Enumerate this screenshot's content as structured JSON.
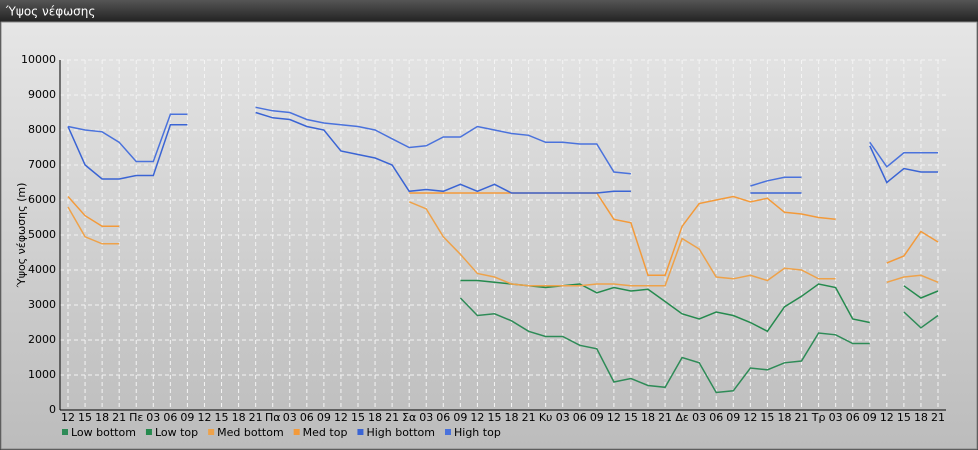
{
  "window_title": "Ύψος νέφωσης",
  "chart_data": {
    "type": "line",
    "y_label": "Ύψος νέφωσης (m)",
    "categories": [
      "12",
      "15",
      "18",
      "21",
      "Πε",
      "03",
      "06",
      "09",
      "12",
      "15",
      "18",
      "21",
      "Πα",
      "03",
      "06",
      "09",
      "12",
      "15",
      "18",
      "21",
      "Σα",
      "03",
      "06",
      "09",
      "12",
      "15",
      "18",
      "21",
      "Κυ",
      "03",
      "06",
      "09",
      "12",
      "15",
      "18",
      "21",
      "Δε",
      "03",
      "06",
      "09",
      "12",
      "15",
      "18",
      "21",
      "Τρ",
      "03",
      "06",
      "09",
      "12",
      "15",
      "18",
      "21"
    ],
    "ylim": [
      0,
      10000
    ],
    "yticks": [
      0,
      1000,
      2000,
      3000,
      4000,
      5000,
      6000,
      7000,
      8000,
      9000,
      10000
    ],
    "grid": true,
    "legend": "bottom",
    "series": [
      {
        "name": "Low bottom",
        "color": "#2e8b57",
        "values": [
          null,
          null,
          null,
          null,
          null,
          null,
          null,
          null,
          null,
          null,
          null,
          null,
          null,
          null,
          null,
          null,
          null,
          null,
          null,
          null,
          null,
          null,
          null,
          3200,
          2700,
          2750,
          2550,
          2250,
          2100,
          2100,
          1850,
          1750,
          800,
          900,
          700,
          650,
          1500,
          1350,
          500,
          550,
          1200,
          1150,
          1350,
          1400,
          2200,
          2150,
          1900,
          1900,
          null,
          2800,
          2350,
          2700
        ]
      },
      {
        "name": "Low top",
        "color": "#258a4e",
        "values": [
          null,
          null,
          null,
          null,
          null,
          null,
          null,
          null,
          null,
          null,
          null,
          null,
          null,
          null,
          null,
          null,
          null,
          null,
          null,
          null,
          null,
          null,
          null,
          3700,
          3700,
          3650,
          3600,
          3550,
          3500,
          3550,
          3600,
          3350,
          3500,
          3400,
          3450,
          3100,
          2750,
          2600,
          2800,
          2700,
          2500,
          2250,
          2950,
          3250,
          3600,
          3500,
          2600,
          2500,
          null,
          3550,
          3200,
          3400
        ]
      },
      {
        "name": "Med bottom",
        "color": "#eea24a",
        "values": [
          5800,
          4950,
          4750,
          4750,
          null,
          null,
          null,
          null,
          null,
          null,
          null,
          null,
          null,
          null,
          null,
          null,
          null,
          null,
          null,
          null,
          5950,
          5750,
          4950,
          4450,
          3900,
          3800,
          3600,
          3550,
          3550,
          3550,
          3550,
          3600,
          3600,
          3550,
          3550,
          3550,
          4900,
          4600,
          3800,
          3750,
          3850,
          3700,
          4050,
          4000,
          3750,
          3750,
          null,
          null,
          3650,
          3800,
          3850,
          3650
        ]
      },
      {
        "name": "Med top",
        "color": "#f39a3a",
        "values": [
          6100,
          5550,
          5250,
          5250,
          null,
          null,
          null,
          null,
          null,
          null,
          null,
          null,
          null,
          null,
          null,
          null,
          null,
          null,
          null,
          null,
          6200,
          6200,
          6200,
          6200,
          6200,
          6200,
          6200,
          6200,
          6200,
          6200,
          6200,
          6200,
          5450,
          5350,
          3850,
          3850,
          5250,
          5900,
          6000,
          6100,
          5950,
          6050,
          5650,
          5600,
          5500,
          5450,
          null,
          null,
          4200,
          4400,
          5100,
          4800
        ]
      },
      {
        "name": "High bottom",
        "color": "#3a64d4",
        "values": [
          8100,
          7000,
          6600,
          6600,
          6700,
          6700,
          8150,
          8150,
          null,
          null,
          null,
          8500,
          8350,
          8300,
          8100,
          8000,
          7400,
          7300,
          7200,
          7000,
          6250,
          6300,
          6250,
          6450,
          6250,
          6450,
          6200,
          6200,
          6200,
          6200,
          6200,
          6200,
          6250,
          6250,
          null,
          null,
          null,
          null,
          null,
          null,
          6200,
          6200,
          6200,
          6200,
          null,
          null,
          null,
          7550,
          6500,
          6900,
          6800,
          6800
        ]
      },
      {
        "name": "High top",
        "color": "#4a72dc",
        "values": [
          8100,
          8000,
          7950,
          7650,
          7100,
          7100,
          8450,
          8450,
          null,
          null,
          null,
          8650,
          8550,
          8500,
          8300,
          8200,
          8150,
          8100,
          8000,
          7750,
          7500,
          7550,
          7800,
          7800,
          8100,
          8000,
          7900,
          7850,
          7650,
          7650,
          7600,
          7600,
          6800,
          6750,
          null,
          null,
          null,
          null,
          null,
          null,
          6400,
          6550,
          6650,
          6650,
          null,
          null,
          null,
          7650,
          6950,
          7350,
          7350,
          7350
        ]
      }
    ]
  }
}
